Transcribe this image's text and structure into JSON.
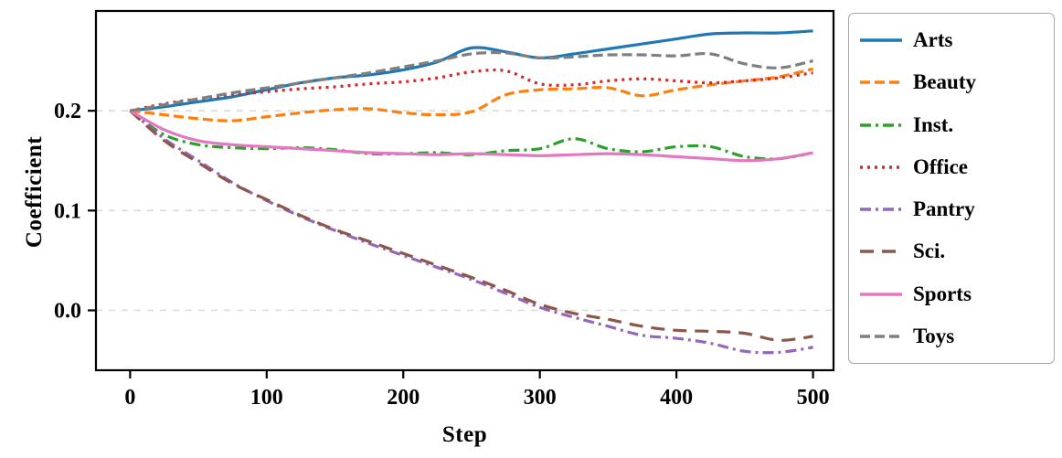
{
  "chart_data": {
    "type": "line",
    "title": "",
    "xlabel": "Step",
    "ylabel": "Coefficient",
    "xlim": [
      -25,
      515
    ],
    "ylim": [
      -0.06,
      0.3
    ],
    "xticks": [
      0,
      100,
      200,
      300,
      400,
      500
    ],
    "xtick_labels": [
      "0",
      "100",
      "200",
      "300",
      "400",
      "500"
    ],
    "yticks": [
      0.0,
      0.1,
      0.2
    ],
    "ytick_labels": [
      "0.0",
      "0.1",
      "0.2"
    ],
    "grid": "horizontal-dashed",
    "grid_color": "#d9d9d9",
    "legend_position": "outside-right",
    "x": [
      0,
      25,
      50,
      75,
      100,
      125,
      150,
      175,
      200,
      225,
      250,
      275,
      300,
      325,
      350,
      375,
      400,
      425,
      450,
      475,
      500
    ],
    "series": [
      {
        "name": "Arts",
        "color": "#1f77b4",
        "style": "solid",
        "values": [
          0.2,
          0.204,
          0.209,
          0.214,
          0.221,
          0.228,
          0.233,
          0.236,
          0.241,
          0.249,
          0.263,
          0.259,
          0.253,
          0.257,
          0.262,
          0.267,
          0.272,
          0.277,
          0.278,
          0.278,
          0.28
        ]
      },
      {
        "name": "Beauty",
        "color": "#ff7f0e",
        "style": "dashed",
        "values": [
          0.2,
          0.196,
          0.192,
          0.19,
          0.194,
          0.198,
          0.201,
          0.202,
          0.198,
          0.196,
          0.199,
          0.216,
          0.221,
          0.222,
          0.223,
          0.215,
          0.221,
          0.226,
          0.23,
          0.234,
          0.242
        ]
      },
      {
        "name": "Inst.",
        "color": "#2ca02c",
        "style": "dashdot",
        "values": [
          0.2,
          0.176,
          0.166,
          0.163,
          0.162,
          0.163,
          0.161,
          0.157,
          0.157,
          0.158,
          0.156,
          0.16,
          0.162,
          0.172,
          0.162,
          0.159,
          0.164,
          0.164,
          0.154,
          0.152,
          0.158
        ]
      },
      {
        "name": "Office",
        "color": "#d62728",
        "style": "dotted",
        "values": [
          0.2,
          0.207,
          0.212,
          0.216,
          0.219,
          0.222,
          0.224,
          0.227,
          0.229,
          0.233,
          0.239,
          0.24,
          0.227,
          0.226,
          0.23,
          0.232,
          0.23,
          0.228,
          0.23,
          0.233,
          0.238
        ]
      },
      {
        "name": "Pantry",
        "color": "#9467bd",
        "style": "dashdot",
        "values": [
          0.2,
          0.172,
          0.15,
          0.128,
          0.11,
          0.094,
          0.08,
          0.067,
          0.055,
          0.043,
          0.031,
          0.017,
          0.003,
          -0.007,
          -0.016,
          -0.025,
          -0.028,
          -0.033,
          -0.041,
          -0.042,
          -0.037
        ]
      },
      {
        "name": "Sci.",
        "color": "#8c564b",
        "style": "longdash",
        "values": [
          0.2,
          0.17,
          0.148,
          0.127,
          0.111,
          0.095,
          0.081,
          0.069,
          0.057,
          0.045,
          0.033,
          0.02,
          0.006,
          -0.003,
          -0.009,
          -0.016,
          -0.02,
          -0.021,
          -0.023,
          -0.03,
          -0.026
        ]
      },
      {
        "name": "Sports",
        "color": "#e377c2",
        "style": "solid",
        "values": [
          0.2,
          0.181,
          0.17,
          0.166,
          0.164,
          0.162,
          0.16,
          0.158,
          0.157,
          0.156,
          0.157,
          0.156,
          0.155,
          0.156,
          0.157,
          0.156,
          0.154,
          0.152,
          0.15,
          0.152,
          0.158
        ]
      },
      {
        "name": "Toys",
        "color": "#7f7f7f",
        "style": "dashed",
        "values": [
          0.2,
          0.206,
          0.212,
          0.218,
          0.223,
          0.228,
          0.233,
          0.238,
          0.244,
          0.25,
          0.257,
          0.258,
          0.253,
          0.254,
          0.256,
          0.256,
          0.255,
          0.257,
          0.247,
          0.243,
          0.25
        ]
      }
    ]
  }
}
